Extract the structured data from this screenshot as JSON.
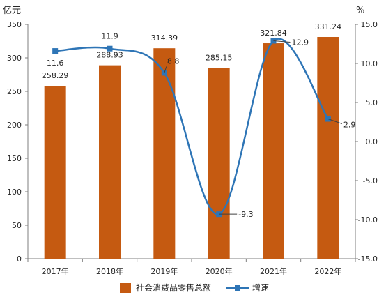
{
  "chart_data": {
    "type": "bar",
    "categories": [
      "2017年",
      "2018年",
      "2019年",
      "2020年",
      "2021年",
      "2022年"
    ],
    "series": [
      {
        "name": "社会消费品零售总额",
        "type": "bar",
        "axis": "left",
        "color": "#c55a11",
        "values": [
          258.29,
          288.93,
          314.39,
          285.15,
          321.84,
          331.24
        ]
      },
      {
        "name": "增速",
        "type": "line",
        "axis": "right",
        "color": "#2e75b6",
        "marker": "square",
        "smooth": true,
        "values": [
          11.6,
          11.9,
          8.8,
          -9.3,
          12.9,
          2.9
        ]
      }
    ],
    "ylabel": "亿元",
    "y2label": "%",
    "ylim": [
      0,
      350
    ],
    "y2lim": [
      -15,
      15
    ],
    "yticks": [
      0,
      50,
      100,
      150,
      200,
      250,
      300,
      350
    ],
    "y2ticks": [
      "-15.0",
      "-10.0",
      "-5.0",
      "0.0",
      "5.0",
      "10.0",
      "15.0"
    ],
    "data_labels": true,
    "grid": false,
    "legend": "bottom"
  }
}
